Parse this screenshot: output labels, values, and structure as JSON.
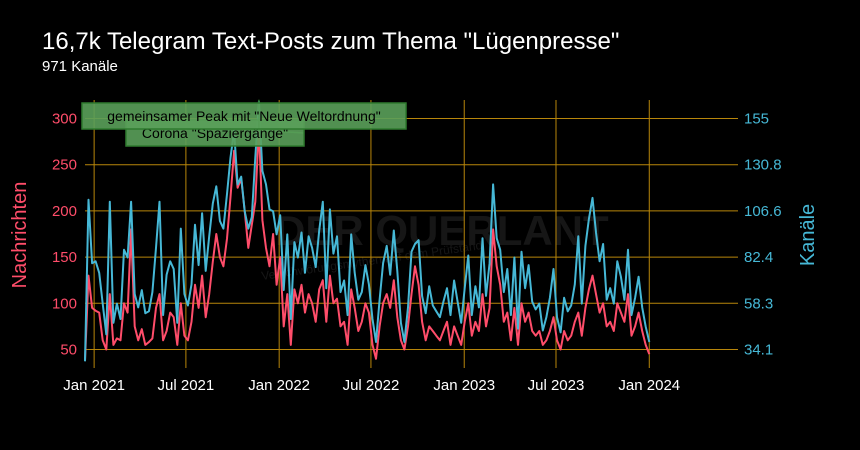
{
  "header": {
    "title": "16,7k Telegram Text-Posts zum Thema \"Lügenpresse\"",
    "subtitle": "971 Kanäle"
  },
  "colors": {
    "background": "#000000",
    "grid": "#b8860b",
    "series_messages": "#ff4d6a",
    "series_channels": "#46b8d6",
    "annotation_fill": "#5aa05a",
    "annotation_border": "#2f7a2f"
  },
  "chart_data": {
    "type": "line",
    "xlabel": "",
    "ylabel": "Nachrichten",
    "y2label": "Kanäle",
    "ylim": [
      30,
      320
    ],
    "y2lim": [
      24.5,
      163.9
    ],
    "grid": true,
    "x_ticks": [
      "Jan 2021",
      "Jul 2021",
      "Jan 2022",
      "Jul 2022",
      "Jan 2023",
      "Jul 2023",
      "Jan 2024"
    ],
    "y_ticks": [
      50,
      100,
      150,
      200,
      250,
      300
    ],
    "y2_ticks": [
      "34.1",
      "58.3",
      "82.4",
      "106.6",
      "130.8",
      "155"
    ],
    "x_start": "2020-12-14",
    "x_end": "2024-06-24",
    "series": [
      {
        "name": "Nachrichten",
        "axis": "left",
        "values": [
          38,
          130,
          95,
          92,
          90,
          60,
          50,
          110,
          55,
          62,
          60,
          100,
          90,
          180,
          75,
          60,
          72,
          55,
          58,
          62,
          95,
          110,
          60,
          70,
          90,
          85,
          55,
          100,
          65,
          60,
          80,
          120,
          95,
          130,
          85,
          110,
          145,
          175,
          150,
          140,
          170,
          215,
          265,
          225,
          235,
          200,
          160,
          185,
          210,
          290,
          190,
          160,
          140,
          175,
          120,
          150,
          75,
          110,
          55,
          115,
          100,
          120,
          90,
          110,
          100,
          80,
          115,
          125,
          80,
          130,
          100,
          105,
          75,
          80,
          55,
          115,
          95,
          70,
          80,
          100,
          90,
          55,
          40,
          75,
          100,
          110,
          95,
          125,
          85,
          60,
          50,
          75,
          110,
          140,
          120,
          80,
          60,
          75,
          70,
          65,
          60,
          70,
          80,
          55,
          75,
          65,
          55,
          80,
          100,
          65,
          80,
          70,
          110,
          75,
          95,
          180,
          140,
          120,
          80,
          90,
          60,
          95,
          55,
          100,
          80,
          90,
          70,
          65,
          70,
          55,
          60,
          70,
          85,
          60,
          50,
          70,
          60,
          65,
          80,
          90,
          65,
          95,
          115,
          130,
          110,
          90,
          100,
          75,
          80,
          70,
          100,
          90,
          80,
          110,
          65,
          75,
          90,
          70,
          55,
          45
        ]
      },
      {
        "name": "Kanäle",
        "axis": "right",
        "values": [
          28,
          112,
          79,
          80,
          74,
          58,
          42,
          111,
          48,
          58,
          50,
          86,
          82,
          111,
          63,
          56,
          65,
          53,
          54,
          64,
          87,
          111,
          52,
          73,
          80,
          76,
          48,
          97,
          63,
          57,
          68,
          99,
          78,
          105,
          75,
          93,
          110,
          119,
          101,
          97,
          115,
          134,
          148,
          120,
          124,
          106,
          97,
          103,
          134,
          163,
          127,
          120,
          107,
          106,
          94,
          104,
          65,
          94,
          50,
          90,
          82,
          95,
          74,
          93,
          87,
          77,
          96,
          111,
          66,
          107,
          84,
          93,
          64,
          70,
          52,
          94,
          74,
          60,
          64,
          78,
          68,
          50,
          38,
          60,
          79,
          88,
          73,
          96,
          75,
          48,
          38,
          56,
          85,
          89,
          91,
          62,
          53,
          67,
          57,
          54,
          51,
          59,
          66,
          52,
          70,
          59,
          48,
          66,
          83,
          52,
          67,
          56,
          92,
          62,
          79,
          120,
          92,
          86,
          64,
          76,
          52,
          82,
          45,
          85,
          66,
          78,
          59,
          55,
          58,
          44,
          51,
          61,
          76,
          51,
          43,
          61,
          54,
          57,
          68,
          93,
          58,
          88,
          102,
          113,
          95,
          80,
          89,
          60,
          66,
          58,
          80,
          72,
          60,
          86,
          52,
          61,
          72,
          56,
          46,
          38
        ]
      }
    ],
    "annotations": [
      {
        "text": "gemeinsamer Peak mit \"Neue Weltordnung\"",
        "x_index": 49
      },
      {
        "text": "Corona \"Spaziergänge\"",
        "x_index": 42
      }
    ]
  }
}
